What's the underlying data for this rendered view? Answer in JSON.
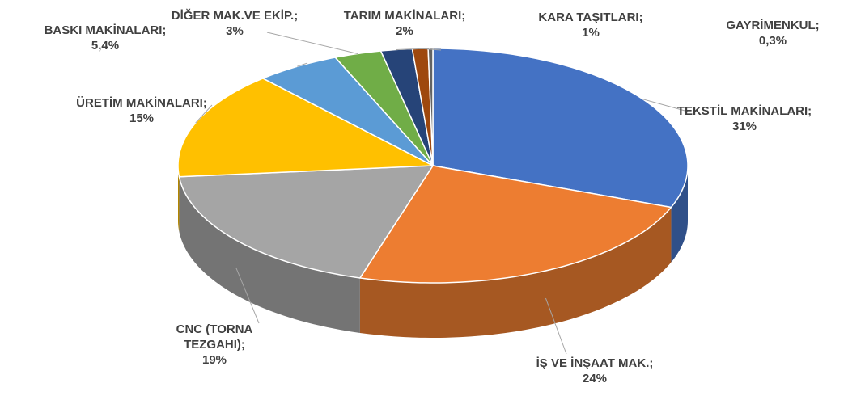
{
  "chart_data": {
    "type": "pie",
    "categories": [
      "TEKSTİL MAKİNALARI;",
      "İŞ VE İNŞAAT MAK.;",
      "CNC (TORNA TEZGAHI);",
      "ÜRETİM MAKİNALARI;",
      "BASKI MAKİNALARI;",
      "DİĞER MAK.VE EKİP.;",
      "TARIM MAKİNALARI;",
      "KARA TAŞITLARI;",
      "GAYRİMENKUL;"
    ],
    "values": [
      31,
      24,
      19,
      15,
      5.4,
      3,
      2,
      1,
      0.3
    ],
    "value_labels": [
      "31%",
      "24%",
      "19%",
      "15%",
      "5,4%",
      "3%",
      "2%",
      "1%",
      "0,3%"
    ],
    "colors": [
      "#4472c4",
      "#ed7d31",
      "#a5a5a5",
      "#ffc000",
      "#5b9bd5",
      "#70ad47",
      "#264478",
      "#9e480e",
      "#636363"
    ]
  }
}
